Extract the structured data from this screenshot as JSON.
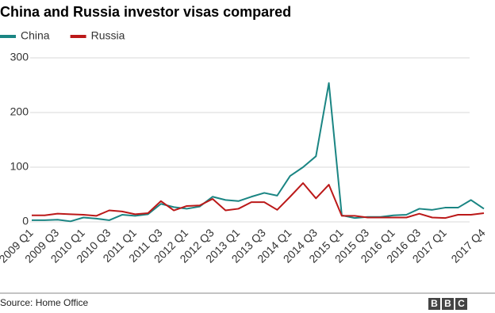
{
  "chart_data": {
    "type": "line",
    "title": "China and Russia investor visas compared",
    "categories": [
      "2009 Q1",
      null,
      "2009 Q3",
      null,
      "2010 Q1",
      null,
      "2010 Q3",
      null,
      "2011 Q1",
      null,
      "2011 Q3",
      null,
      "2012 Q1",
      null,
      "2012 Q3",
      null,
      "2013 Q1",
      null,
      "2013 Q3",
      null,
      "2014 Q1",
      null,
      "2014 Q3",
      null,
      "2015 Q1",
      null,
      "2015 Q3",
      null,
      "2016 Q1",
      null,
      "2016 Q3",
      null,
      "2017 Q1",
      null,
      null,
      "2017 Q4"
    ],
    "series": [
      {
        "name": "China",
        "color": "#1a8583",
        "values": [
          3,
          3,
          4,
          1,
          8,
          6,
          3,
          13,
          11,
          14,
          33,
          27,
          24,
          28,
          46,
          40,
          38,
          46,
          53,
          48,
          84,
          100,
          120,
          254,
          12,
          7,
          9,
          9,
          12,
          13,
          24,
          22,
          26,
          26,
          40,
          24
        ]
      },
      {
        "name": "Russia",
        "color": "#bb1919",
        "values": [
          12,
          12,
          15,
          14,
          13,
          11,
          21,
          19,
          14,
          16,
          38,
          21,
          29,
          30,
          42,
          21,
          24,
          36,
          36,
          22,
          46,
          71,
          43,
          68,
          11,
          11,
          8,
          8,
          8,
          8,
          15,
          8,
          7,
          13,
          13,
          16
        ]
      }
    ],
    "ylim": [
      0,
      300
    ],
    "yticks": [
      0,
      100,
      200,
      300
    ],
    "grid": true,
    "source": "Source: Home Office",
    "logo": [
      "B",
      "B",
      "C"
    ]
  }
}
